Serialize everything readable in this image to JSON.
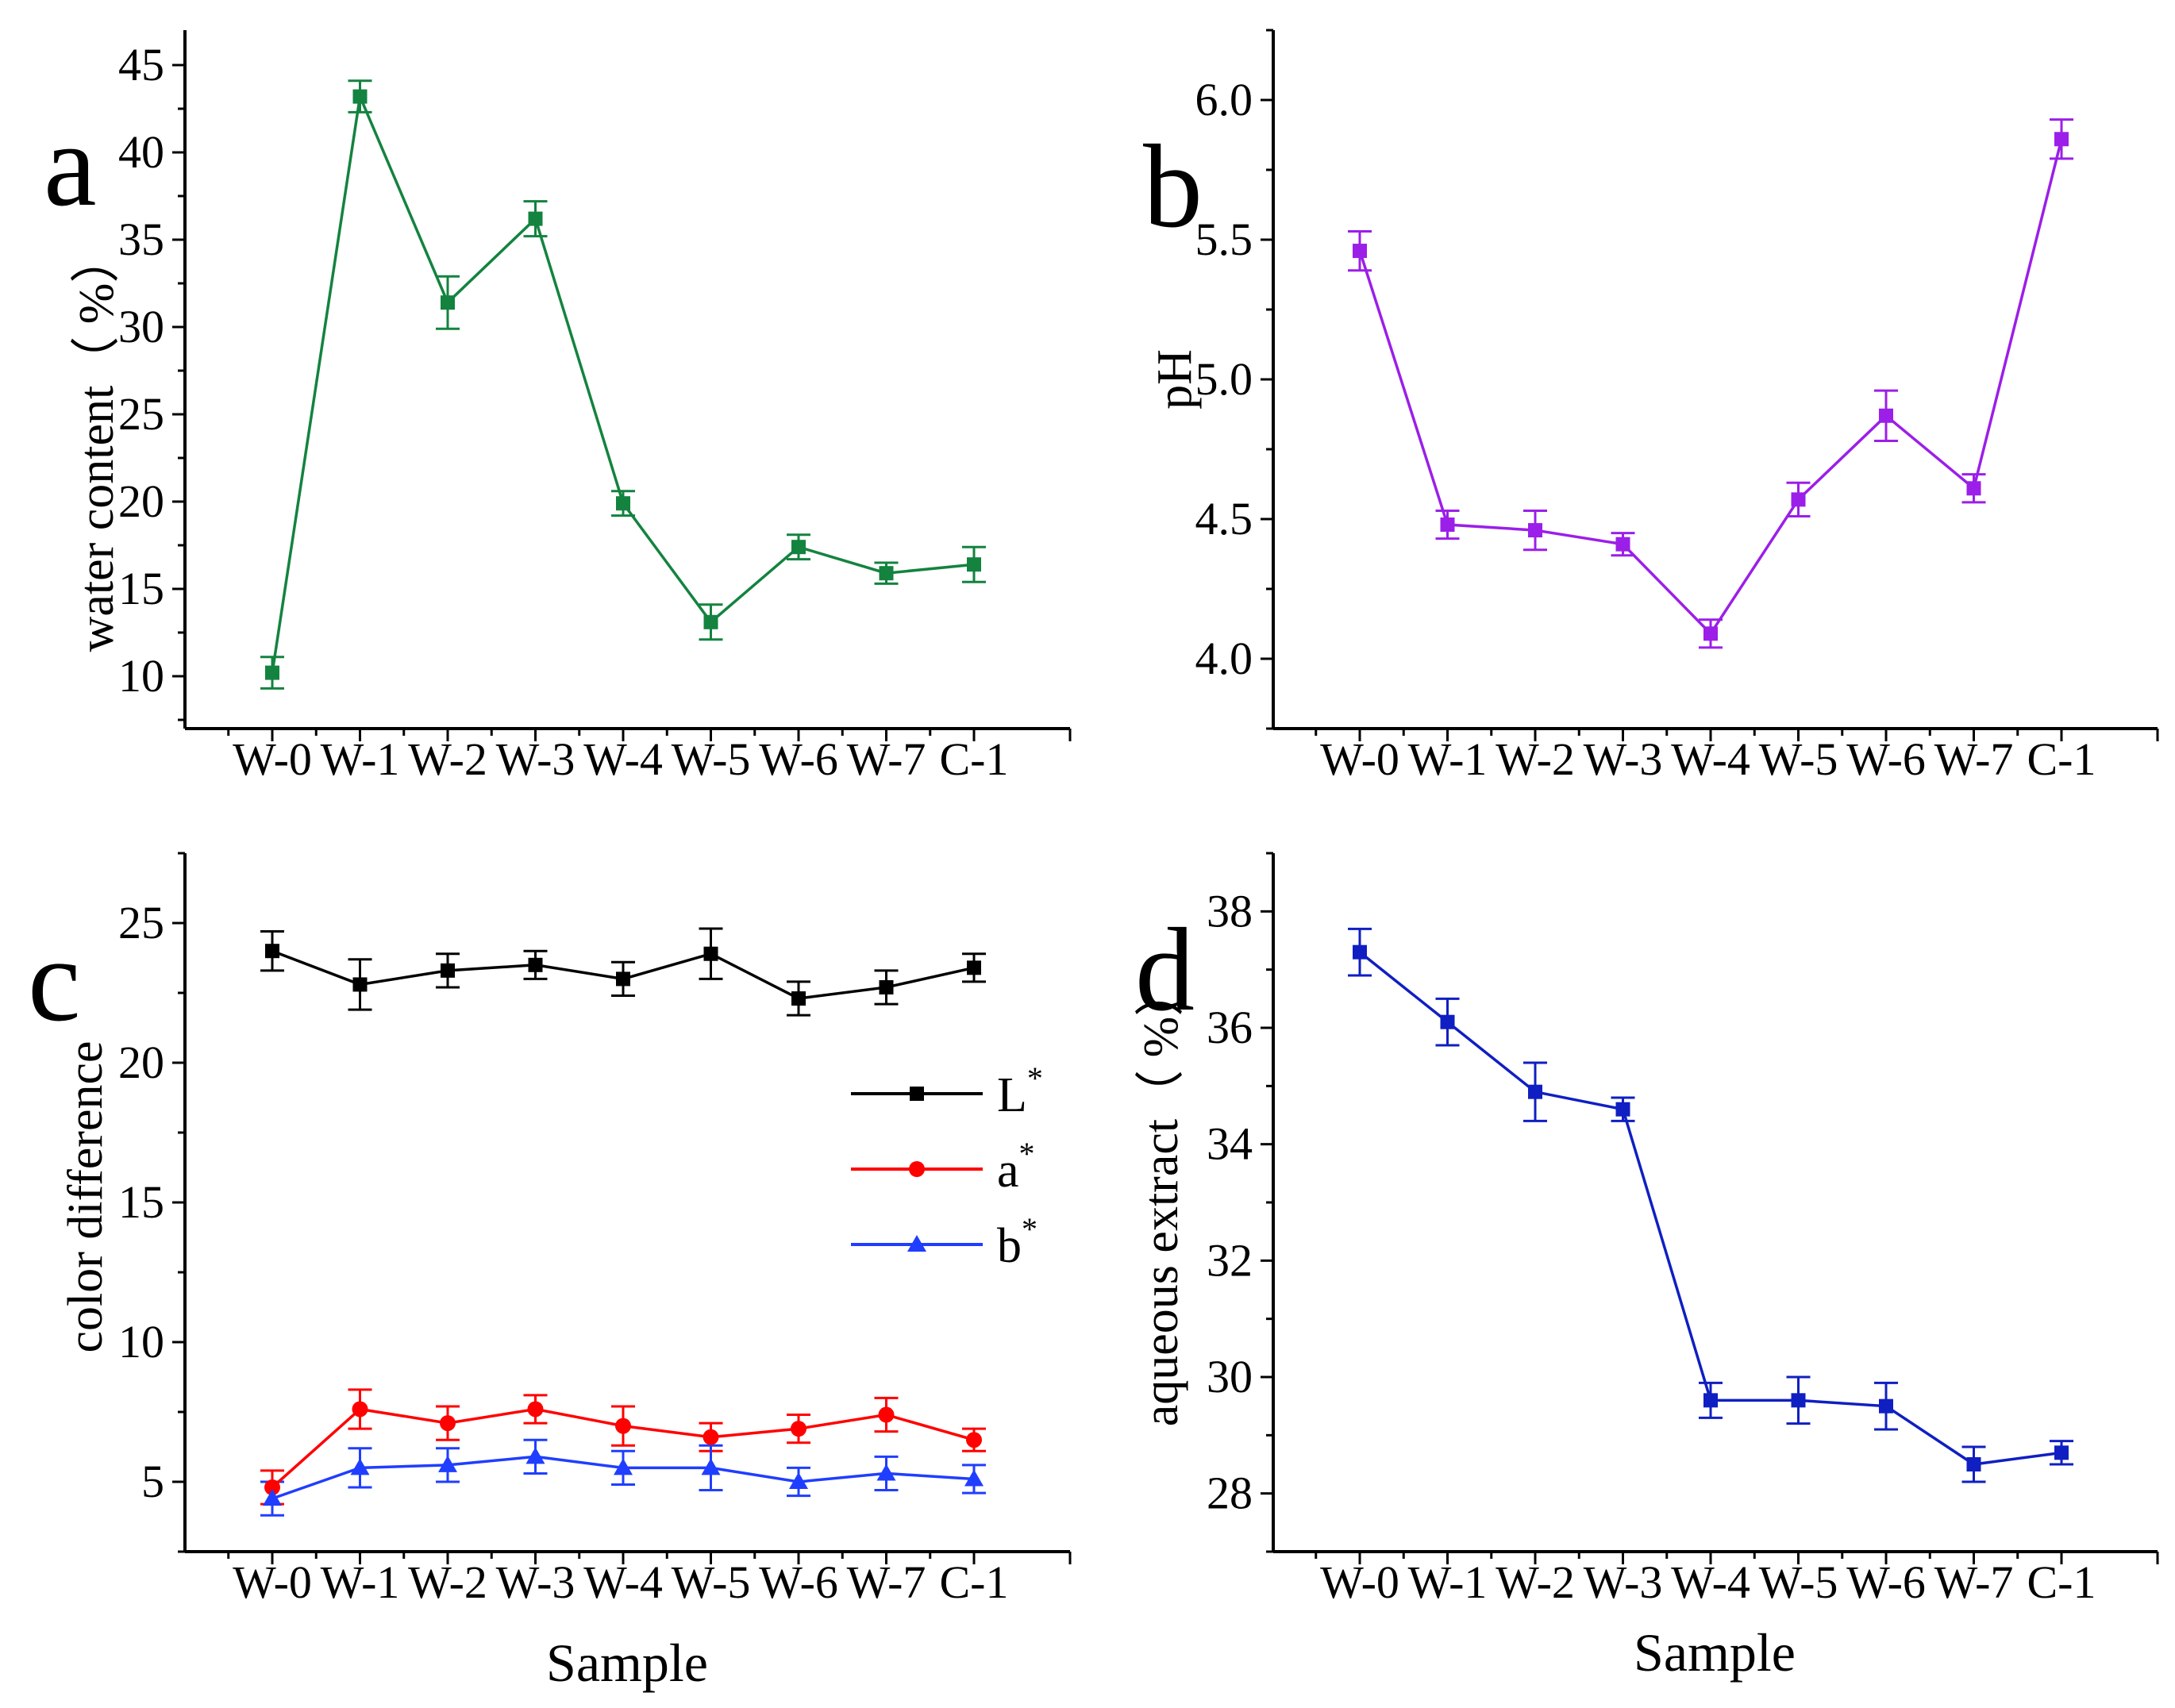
{
  "chart_data": [
    {
      "type": "line",
      "panel_label": "a",
      "title": "",
      "xlabel": "",
      "ylabel": "water content（ %）",
      "ylim": [
        7,
        47
      ],
      "yticks": [
        "10",
        "15",
        "20",
        "25",
        "30",
        "35",
        "40",
        "45"
      ],
      "categories": [
        "W-0",
        "W-1",
        "W-2",
        "W-3",
        "W-4",
        "W-5",
        "W-6",
        "W-7",
        "C-1"
      ],
      "series": [
        {
          "name": "water content",
          "color": "#13833f",
          "marker": "square",
          "values": [
            10.2,
            43.2,
            31.4,
            36.2,
            19.9,
            13.1,
            17.4,
            15.9,
            16.4
          ],
          "errors": [
            0.9,
            0.9,
            1.5,
            1.0,
            0.7,
            1.0,
            0.7,
            0.6,
            1.0
          ]
        }
      ]
    },
    {
      "type": "line",
      "panel_label": "b",
      "title": "",
      "xlabel": "",
      "ylabel": "pH",
      "ylim": [
        3.75,
        6.25
      ],
      "yticks": [
        "4.0",
        "4.5",
        "5.0",
        "5.5",
        "6.0"
      ],
      "categories": [
        "W-0",
        "W-1",
        "W-2",
        "W-3",
        "W-4",
        "W-5",
        "W-6",
        "W-7",
        "C-1"
      ],
      "series": [
        {
          "name": "pH",
          "color": "#9b1fe8",
          "marker": "square",
          "values": [
            5.46,
            4.48,
            4.46,
            4.41,
            4.09,
            4.57,
            4.87,
            4.61,
            5.86
          ],
          "errors": [
            0.07,
            0.05,
            0.07,
            0.04,
            0.05,
            0.06,
            0.09,
            0.05,
            0.07
          ]
        }
      ]
    },
    {
      "type": "line",
      "panel_label": "c",
      "title": "",
      "xlabel": "Sample",
      "ylabel": "color difference",
      "ylim": [
        2.5,
        27.5
      ],
      "yticks": [
        "5",
        "10",
        "15",
        "20",
        "25"
      ],
      "categories": [
        "W-0",
        "W-1",
        "W-2",
        "W-3",
        "W-4",
        "W-5",
        "W-6",
        "W-7",
        "C-1"
      ],
      "legend_position": "right",
      "series": [
        {
          "name": "L",
          "sup": "*",
          "color": "#000000",
          "marker": "square",
          "values": [
            24.0,
            22.8,
            23.3,
            23.5,
            23.0,
            23.9,
            22.3,
            22.7,
            23.4
          ],
          "errors": [
            0.7,
            0.9,
            0.6,
            0.5,
            0.6,
            0.9,
            0.6,
            0.6,
            0.5
          ]
        },
        {
          "name": "a",
          "sup": "*",
          "color": "#ff0000",
          "marker": "circle",
          "values": [
            4.8,
            7.6,
            7.1,
            7.6,
            7.0,
            6.6,
            6.9,
            7.4,
            6.5
          ],
          "errors": [
            0.6,
            0.7,
            0.6,
            0.5,
            0.7,
            0.5,
            0.5,
            0.6,
            0.4
          ]
        },
        {
          "name": "b",
          "sup": "*",
          "color": "#1f3eff",
          "marker": "triangle",
          "values": [
            4.4,
            5.5,
            5.6,
            5.9,
            5.5,
            5.5,
            5.0,
            5.3,
            5.1
          ],
          "errors": [
            0.6,
            0.7,
            0.6,
            0.6,
            0.6,
            0.8,
            0.5,
            0.6,
            0.5
          ]
        }
      ]
    },
    {
      "type": "line",
      "panel_label": "d",
      "title": "",
      "xlabel": "Sample",
      "ylabel": "aqueous extract（ %）",
      "ylim": [
        27,
        39
      ],
      "yticks": [
        "28",
        "30",
        "32",
        "34",
        "36",
        "38"
      ],
      "categories": [
        "W-0",
        "W-1",
        "W-2",
        "W-3",
        "W-4",
        "W-5",
        "W-6",
        "W-7",
        "C-1"
      ],
      "series": [
        {
          "name": "aqueous extract",
          "color": "#0f1fc2",
          "marker": "square",
          "values": [
            37.3,
            36.1,
            34.9,
            34.6,
            29.6,
            29.6,
            29.5,
            28.5,
            28.7
          ],
          "errors": [
            0.4,
            0.4,
            0.5,
            0.2,
            0.3,
            0.4,
            0.4,
            0.3,
            0.2
          ]
        }
      ]
    }
  ]
}
